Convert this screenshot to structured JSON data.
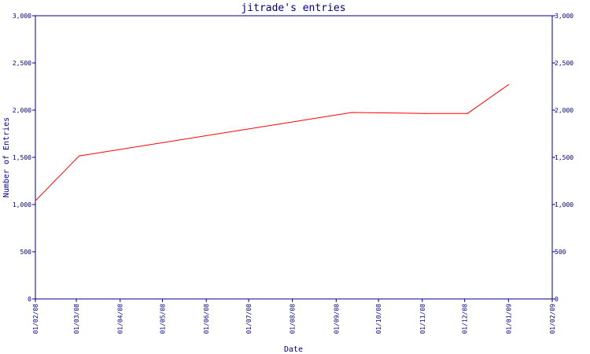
{
  "chart_data": {
    "type": "line",
    "title": "jitrade's entries",
    "xlabel": "Date",
    "ylabel": "Number of Entries",
    "x_ticks": [
      "01/02/08",
      "01/03/08",
      "01/04/08",
      "01/05/08",
      "01/06/08",
      "01/07/08",
      "01/08/08",
      "01/09/08",
      "01/10/08",
      "01/11/08",
      "01/12/08",
      "01/01/09",
      "01/02/09"
    ],
    "y_ticks": [
      "0",
      "500",
      "1,000",
      "1,500",
      "2,000",
      "2,500",
      "3,000"
    ],
    "ylim": [
      0,
      3000
    ],
    "xlim": [
      "2008-02-01",
      "2009-02-01"
    ],
    "grid": false,
    "colors": {
      "axis": "#000080",
      "line": "#ff0000"
    },
    "series": [
      {
        "x": [
          "2008-02-01",
          "2008-03-03",
          "2008-09-12",
          "2008-11-03",
          "2008-12-03",
          "2009-01-01"
        ],
        "values": [
          1040,
          1515,
          1975,
          1965,
          1965,
          2270
        ]
      }
    ]
  }
}
